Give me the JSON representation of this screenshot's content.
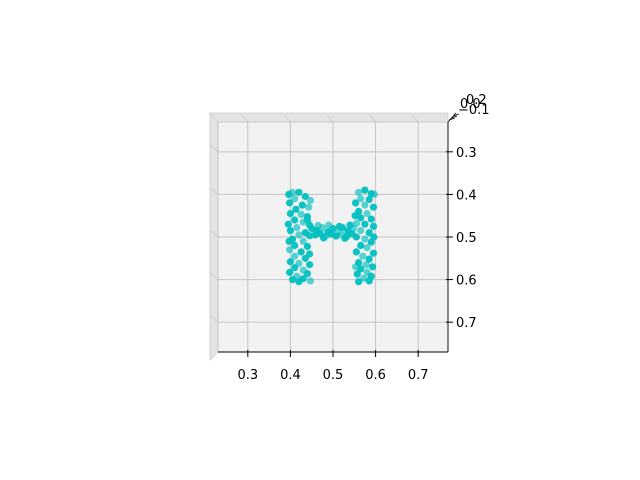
{
  "chart_data": {
    "type": "scatter",
    "projection": "3d",
    "view": "top-down",
    "title": "",
    "xlabel": "",
    "ylabel": "",
    "zlabel": "",
    "grid": true,
    "xlim": [
      0.23,
      0.77
    ],
    "ylim": [
      0.23,
      0.77
    ],
    "x_ticks": [
      "0.3",
      "0.4",
      "0.5",
      "0.6",
      "0.7"
    ],
    "y_ticks": [
      "0.3",
      "0.4",
      "0.5",
      "0.6",
      "0.7"
    ],
    "z_ticks": [
      "0.2",
      "0.0",
      "−0.1"
    ],
    "point_color": "#00BFBF",
    "pane_color": "#F2F2F2",
    "series": [
      {
        "marker": "circle",
        "points": [
          [
            0.405,
            0.395
          ],
          [
            0.42,
            0.395
          ],
          [
            0.435,
            0.405
          ],
          [
            0.41,
            0.41
          ],
          [
            0.398,
            0.42
          ],
          [
            0.428,
            0.425
          ],
          [
            0.443,
            0.43
          ],
          [
            0.413,
            0.435
          ],
          [
            0.4,
            0.445
          ],
          [
            0.425,
            0.447
          ],
          [
            0.44,
            0.452
          ],
          [
            0.41,
            0.46
          ],
          [
            0.43,
            0.465
          ],
          [
            0.395,
            0.47
          ],
          [
            0.445,
            0.472
          ],
          [
            0.415,
            0.478
          ],
          [
            0.4,
            0.485
          ],
          [
            0.435,
            0.49
          ],
          [
            0.42,
            0.495
          ],
          [
            0.445,
            0.497
          ],
          [
            0.405,
            0.505
          ],
          [
            0.43,
            0.51
          ],
          [
            0.41,
            0.52
          ],
          [
            0.44,
            0.522
          ],
          [
            0.398,
            0.53
          ],
          [
            0.425,
            0.535
          ],
          [
            0.445,
            0.54
          ],
          [
            0.41,
            0.545
          ],
          [
            0.435,
            0.55
          ],
          [
            0.4,
            0.558
          ],
          [
            0.42,
            0.562
          ],
          [
            0.445,
            0.565
          ],
          [
            0.41,
            0.572
          ],
          [
            0.43,
            0.578
          ],
          [
            0.398,
            0.583
          ],
          [
            0.44,
            0.586
          ],
          [
            0.415,
            0.592
          ],
          [
            0.405,
            0.6
          ],
          [
            0.43,
            0.598
          ],
          [
            0.447,
            0.603
          ],
          [
            0.42,
            0.605
          ],
          [
            0.396,
            0.4
          ],
          [
            0.447,
            0.414
          ],
          [
            0.44,
            0.46
          ],
          [
            0.397,
            0.51
          ],
          [
            0.56,
            0.395
          ],
          [
            0.575,
            0.39
          ],
          [
            0.59,
            0.398
          ],
          [
            0.565,
            0.41
          ],
          [
            0.585,
            0.412
          ],
          [
            0.553,
            0.42
          ],
          [
            0.575,
            0.425
          ],
          [
            0.595,
            0.43
          ],
          [
            0.56,
            0.44
          ],
          [
            0.58,
            0.445
          ],
          [
            0.565,
            0.455
          ],
          [
            0.59,
            0.458
          ],
          [
            0.555,
            0.468
          ],
          [
            0.575,
            0.47
          ],
          [
            0.595,
            0.475
          ],
          [
            0.565,
            0.485
          ],
          [
            0.585,
            0.49
          ],
          [
            0.555,
            0.5
          ],
          [
            0.575,
            0.505
          ],
          [
            0.59,
            0.512
          ],
          [
            0.565,
            0.52
          ],
          [
            0.58,
            0.525
          ],
          [
            0.555,
            0.535
          ],
          [
            0.595,
            0.538
          ],
          [
            0.57,
            0.545
          ],
          [
            0.585,
            0.552
          ],
          [
            0.56,
            0.56
          ],
          [
            0.578,
            0.565
          ],
          [
            0.593,
            0.57
          ],
          [
            0.565,
            0.575
          ],
          [
            0.58,
            0.583
          ],
          [
            0.557,
            0.587
          ],
          [
            0.59,
            0.592
          ],
          [
            0.572,
            0.597
          ],
          [
            0.585,
            0.603
          ],
          [
            0.56,
            0.605
          ],
          [
            0.597,
            0.4
          ],
          [
            0.552,
            0.45
          ],
          [
            0.596,
            0.5
          ],
          [
            0.553,
            0.57
          ],
          [
            0.45,
            0.48
          ],
          [
            0.462,
            0.485
          ],
          [
            0.475,
            0.478
          ],
          [
            0.488,
            0.488
          ],
          [
            0.5,
            0.48
          ],
          [
            0.51,
            0.49
          ],
          [
            0.522,
            0.478
          ],
          [
            0.535,
            0.486
          ],
          [
            0.548,
            0.48
          ],
          [
            0.458,
            0.495
          ],
          [
            0.47,
            0.492
          ],
          [
            0.483,
            0.498
          ],
          [
            0.495,
            0.493
          ],
          [
            0.507,
            0.498
          ],
          [
            0.52,
            0.494
          ],
          [
            0.532,
            0.499
          ],
          [
            0.545,
            0.493
          ],
          [
            0.465,
            0.473
          ],
          [
            0.515,
            0.475
          ],
          [
            0.54,
            0.472
          ],
          [
            0.49,
            0.472
          ],
          [
            0.478,
            0.502
          ],
          [
            0.528,
            0.503
          ]
        ]
      }
    ]
  }
}
